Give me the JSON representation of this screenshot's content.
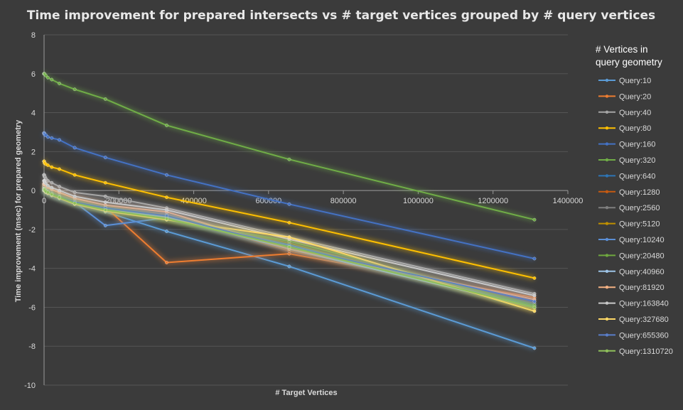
{
  "chart_data": {
    "type": "line",
    "title": "Time improvement for prepared intersects vs # target vertices grouped by # query vertices",
    "xlabel": "# Target Vertices",
    "ylabel": "Time improvement  (msec) for prepared  geometry",
    "xlim": [
      0,
      1400000
    ],
    "ylim": [
      -10,
      8
    ],
    "xticks": [
      0,
      200000,
      400000,
      600000,
      800000,
      1000000,
      1200000,
      1400000
    ],
    "yticks": [
      -10,
      -8,
      -6,
      -4,
      -2,
      0,
      2,
      4,
      6,
      8
    ],
    "grid": true,
    "legend_position": "right",
    "legend_title": "# Vertices in query geometry",
    "x": [
      10,
      20,
      40,
      80,
      160,
      320,
      640,
      1280,
      2560,
      5120,
      10240,
      20480,
      40960,
      81920,
      163840,
      327680,
      655360,
      1310720
    ],
    "series": [
      {
        "name": "Query:10",
        "color": "#5b9bd5",
        "values": [
          0.1,
          0.1,
          0.1,
          0.1,
          0.1,
          0.1,
          0.1,
          0.1,
          0.1,
          0.05,
          0,
          -0.1,
          -0.25,
          -0.5,
          -1.1,
          -2.1,
          -3.9,
          -8.1
        ]
      },
      {
        "name": "Query:20",
        "color": "#ed7d31",
        "values": [
          0.3,
          0.3,
          0.3,
          0.3,
          0.3,
          0.3,
          0.3,
          0.3,
          0.25,
          0.2,
          0.1,
          0,
          -0.15,
          -0.4,
          -0.85,
          -3.7,
          -3.25,
          -5.5
        ]
      },
      {
        "name": "Query:40",
        "color": "#a5a5a5",
        "values": [
          0.8,
          0.8,
          0.8,
          0.8,
          0.8,
          0.8,
          0.75,
          0.7,
          0.7,
          0.6,
          0.5,
          0.4,
          0.2,
          -0.1,
          -0.3,
          -0.9,
          -2.4,
          -5.3
        ]
      },
      {
        "name": "Query:80",
        "color": "#ffc000",
        "values": [
          1.5,
          1.5,
          1.5,
          1.5,
          1.5,
          1.5,
          1.45,
          1.4,
          1.4,
          1.35,
          1.3,
          1.2,
          1.1,
          0.8,
          0.4,
          -0.35,
          -1.65,
          -4.5
        ]
      },
      {
        "name": "Query:160",
        "color": "#4472c4",
        "values": [
          2.95,
          2.95,
          2.95,
          2.95,
          2.95,
          2.95,
          2.9,
          2.9,
          2.85,
          2.85,
          2.75,
          2.7,
          2.6,
          2.2,
          1.7,
          0.8,
          -0.7,
          -3.5
        ]
      },
      {
        "name": "Query:320",
        "color": "#70ad47",
        "values": [
          6.0,
          6.0,
          6.0,
          6.0,
          6.0,
          6.0,
          6.0,
          6.0,
          5.95,
          5.9,
          5.8,
          5.7,
          5.5,
          5.2,
          4.7,
          3.35,
          1.6,
          -1.5
        ]
      },
      {
        "name": "Query:640",
        "color": "#2e75b6",
        "values": [
          0.2,
          0.2,
          0.2,
          0.2,
          0.2,
          0.2,
          0.2,
          0.15,
          0.1,
          0.1,
          0,
          -0.1,
          -0.3,
          -0.55,
          -0.9,
          -1.3,
          -2.9,
          -5.9
        ]
      },
      {
        "name": "Query:1280",
        "color": "#c55a11",
        "values": [
          0.25,
          0.25,
          0.25,
          0.25,
          0.25,
          0.25,
          0.25,
          0.2,
          0.2,
          0.15,
          0.05,
          -0.05,
          -0.2,
          -0.45,
          -0.8,
          -1.25,
          -3.1,
          -5.7
        ]
      },
      {
        "name": "Query:2560",
        "color": "#7f7f7f",
        "values": [
          0.15,
          0.15,
          0.15,
          0.15,
          0.15,
          0.15,
          0.15,
          0.1,
          0.1,
          0.05,
          0,
          -0.1,
          -0.25,
          -0.5,
          -0.85,
          -1.2,
          -3.0,
          -5.8
        ]
      },
      {
        "name": "Query:5120",
        "color": "#bf9000",
        "values": [
          0.1,
          0.1,
          0.1,
          0.1,
          0.1,
          0.1,
          0.1,
          0.1,
          0.05,
          0,
          -0.05,
          -0.15,
          -0.3,
          -0.55,
          -0.95,
          -1.4,
          -2.7,
          -6.1
        ]
      },
      {
        "name": "Query:10240",
        "color": "#5b8fd6",
        "values": [
          0.05,
          0.05,
          0.05,
          0.05,
          0.05,
          0.05,
          0.05,
          0.05,
          0,
          -0.05,
          -0.1,
          -0.2,
          -0.35,
          -0.6,
          -1.8,
          -1.4,
          -2.8,
          -6.0
        ]
      },
      {
        "name": "Query:20480",
        "color": "#6fa83f",
        "values": [
          0.1,
          0.1,
          0.1,
          0.1,
          0.1,
          0.1,
          0.1,
          0.1,
          0.05,
          0,
          -0.05,
          -0.15,
          -0.3,
          -0.6,
          -0.95,
          -1.5,
          -2.6,
          -5.9
        ]
      },
      {
        "name": "Query:40960",
        "color": "#9dc3e6",
        "values": [
          0.0,
          0.0,
          0.0,
          0.0,
          0.0,
          0.0,
          0.0,
          0.0,
          -0.05,
          -0.1,
          -0.15,
          -0.25,
          -0.4,
          -0.65,
          -1.0,
          -1.35,
          -3.0,
          -6.0
        ]
      },
      {
        "name": "Query:81920",
        "color": "#f4b183",
        "values": [
          0.35,
          0.35,
          0.35,
          0.35,
          0.35,
          0.35,
          0.35,
          0.3,
          0.3,
          0.25,
          0.15,
          0.05,
          -0.1,
          -0.4,
          -0.75,
          -1.1,
          -3.0,
          -5.6
        ]
      },
      {
        "name": "Query:163840",
        "color": "#c9c9c9",
        "values": [
          0.5,
          0.5,
          0.5,
          0.5,
          0.5,
          0.5,
          0.45,
          0.45,
          0.4,
          0.35,
          0.25,
          0.15,
          0.0,
          -0.3,
          -0.6,
          -1.0,
          -2.5,
          -5.4
        ]
      },
      {
        "name": "Query:327680",
        "color": "#ffd966",
        "values": [
          0.0,
          0.0,
          0.0,
          0.0,
          0.0,
          0.0,
          0.0,
          0.0,
          -0.05,
          -0.1,
          -0.15,
          -0.25,
          -0.4,
          -0.7,
          -1.05,
          -1.5,
          -2.4,
          -6.2
        ]
      },
      {
        "name": "Query:655360",
        "color": "#5a7ec9",
        "values": [
          0.05,
          0.05,
          0.05,
          0.05,
          0.05,
          0.05,
          0.05,
          0.05,
          0,
          -0.05,
          -0.1,
          -0.2,
          -0.35,
          -0.6,
          -0.9,
          -1.3,
          -2.9,
          -5.7
        ]
      },
      {
        "name": "Query:1310720",
        "color": "#8fbf5b",
        "values": [
          0.05,
          0.05,
          0.05,
          0.05,
          0.05,
          0.05,
          0.05,
          0.05,
          0,
          -0.05,
          -0.1,
          -0.2,
          -0.35,
          -0.65,
          -1.0,
          -1.45,
          -2.9,
          -6.0
        ]
      }
    ]
  }
}
